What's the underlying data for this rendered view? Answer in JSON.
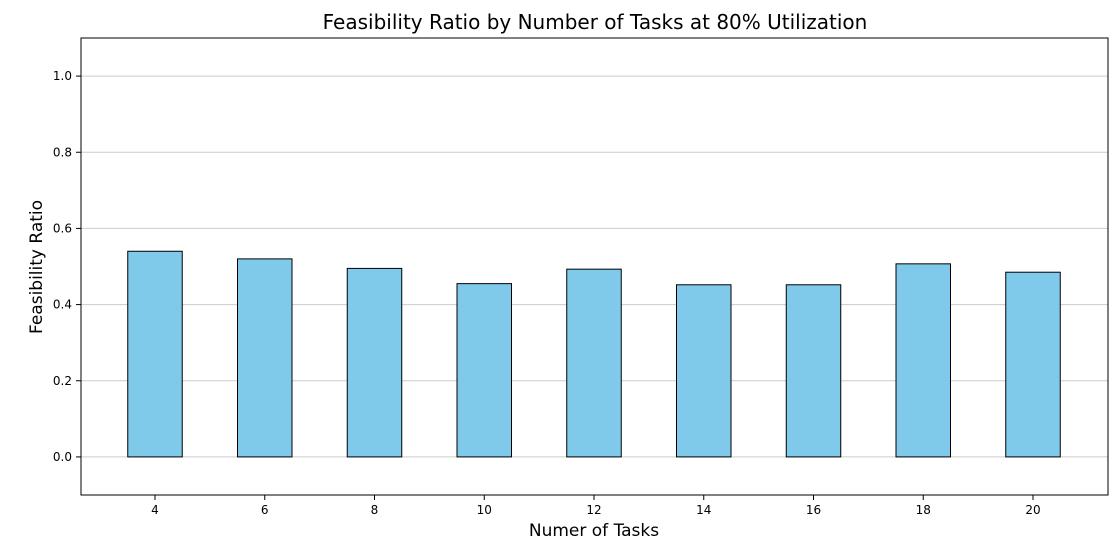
{
  "chart_data": {
    "type": "bar",
    "title": "Feasibility Ratio by Number of Tasks at 80% Utilization",
    "xlabel": "Numer of Tasks",
    "ylabel": "Feasibility Ratio",
    "categories": [
      "4",
      "6",
      "8",
      "10",
      "12",
      "14",
      "16",
      "18",
      "20"
    ],
    "values": [
      0.54,
      0.52,
      0.495,
      0.455,
      0.493,
      0.452,
      0.452,
      0.507,
      0.485
    ],
    "ylim": [
      -0.1,
      1.1
    ],
    "yticks": [
      0.0,
      0.2,
      0.4,
      0.6,
      0.8,
      1.0
    ],
    "grid": "y",
    "colors": {
      "bar_fill": "#7fcaea",
      "bar_edge": "#000000",
      "grid": "#cccccc",
      "axes": "#000000"
    }
  }
}
